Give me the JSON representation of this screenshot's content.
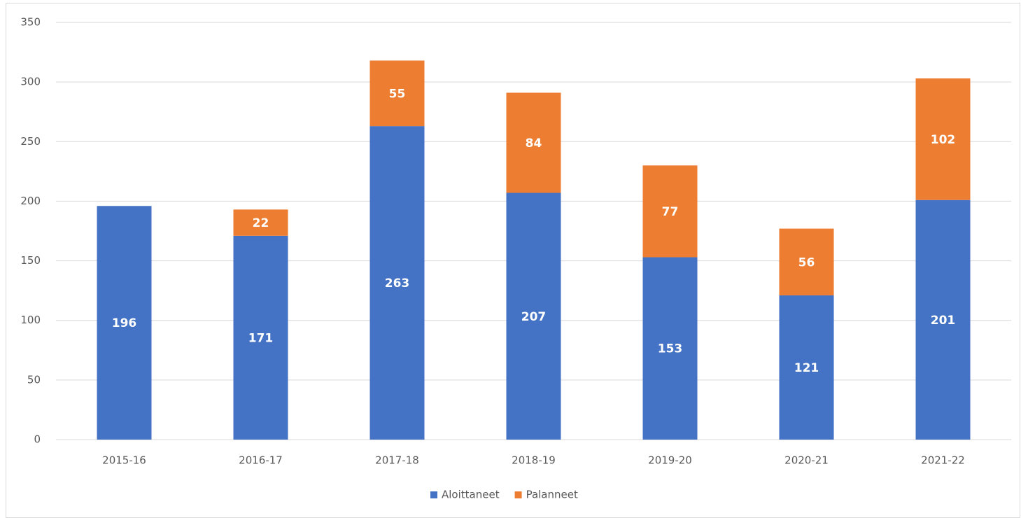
{
  "chart_data": {
    "type": "stacked_bar",
    "categories": [
      "2015-16",
      "2016-17",
      "2017-18",
      "2018-19",
      "2019-20",
      "2020-21",
      "2021-22"
    ],
    "series": [
      {
        "name": "Aloittaneet",
        "color": "#4472c4",
        "values": [
          196,
          171,
          263,
          207,
          153,
          121,
          201
        ]
      },
      {
        "name": "Palanneet",
        "color": "#ed7d31",
        "values": [
          null,
          22,
          55,
          84,
          77,
          56,
          102
        ]
      }
    ],
    "ylim": [
      0,
      350
    ],
    "yticks": [
      0,
      50,
      100,
      150,
      200,
      250,
      300,
      350
    ],
    "grid": true,
    "legend": "bottom"
  }
}
